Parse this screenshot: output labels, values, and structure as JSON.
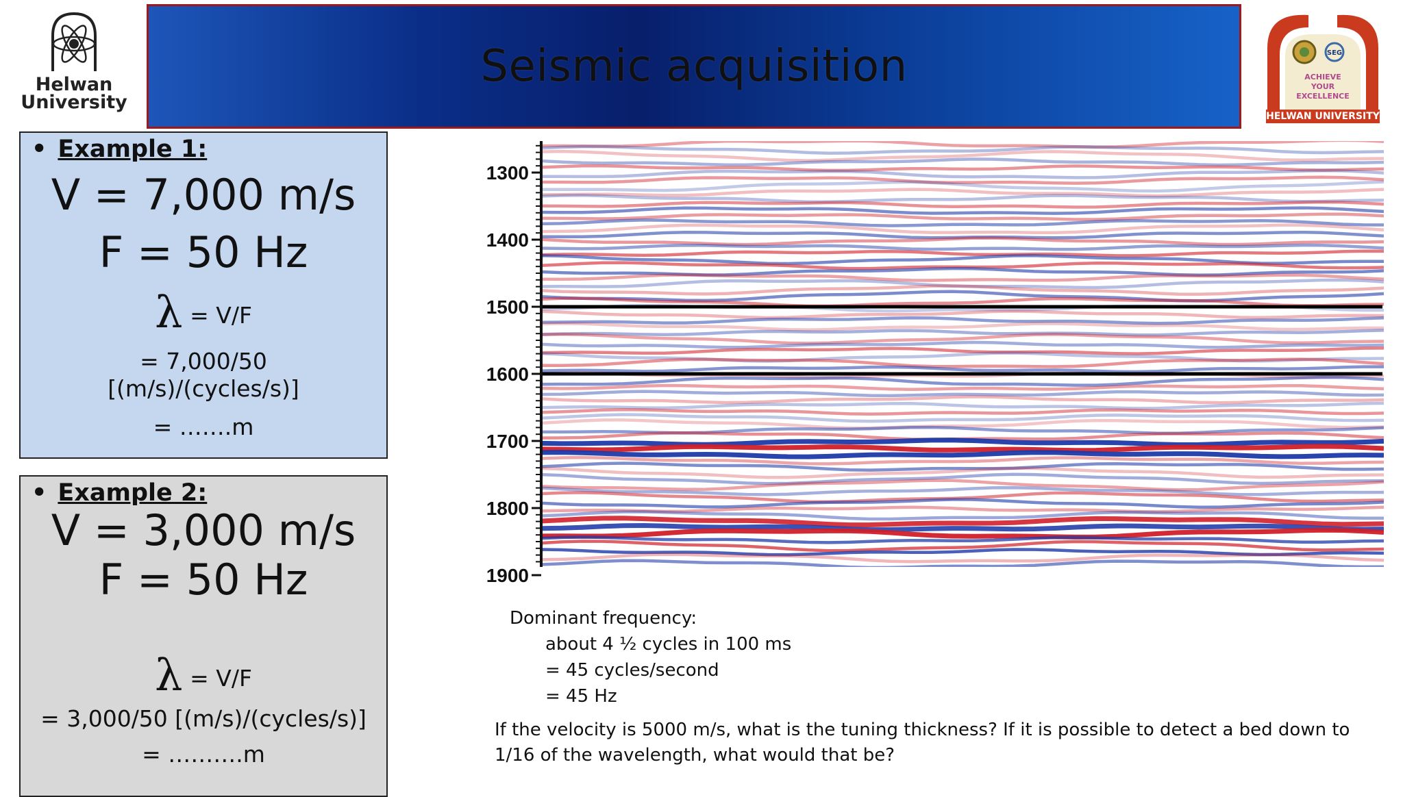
{
  "header": {
    "title": "Seismic acquisition",
    "left_logo": {
      "line1": "Helwan",
      "line2": "University"
    },
    "right_logo": {
      "lines": [
        "ACHIEVE",
        "YOUR",
        "EXCELLENCE"
      ],
      "footer": "HELWAN UNIVERSITY"
    }
  },
  "example1": {
    "heading": "Example 1:",
    "velocity": "V = 7,000 m/s",
    "frequency": "F = 50 Hz",
    "lambda_symbol": "λ",
    "formula": "= V/F",
    "step1": "= 7,000/50",
    "units": "[(m/s)/(cycles/s)]",
    "answer": "= …….m"
  },
  "example2": {
    "heading": "Example 2:",
    "velocity": "V = 3,000 m/s",
    "frequency": "F = 50 Hz",
    "lambda_symbol": "λ",
    "formula": "= V/F",
    "step1": "= 3,000/50  [(m/s)/(cycles/s)]",
    "answer": "= ……….m"
  },
  "seismic_section": {
    "time_ticks": [
      "1300",
      "1400",
      "1500",
      "1600",
      "1700",
      "1800",
      "1900"
    ],
    "marker_lines_ms": [
      1500,
      1600
    ],
    "colors": {
      "positive": "#d0202a",
      "negative": "#1e3aa8",
      "zero": "#ffffff"
    }
  },
  "notes": {
    "line1": "Dominant frequency:",
    "line2": "about 4 ½ cycles in 100 ms",
    "line3": "= 45 cycles/second",
    "line4": "= 45 Hz"
  },
  "question": "If the velocity is 5000 m/s, what is the tuning thickness?  If it is possible to detect a bed down to 1/16 of the wavelength, what would that be?"
}
